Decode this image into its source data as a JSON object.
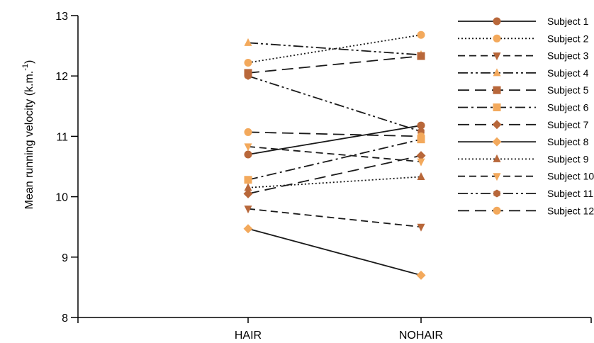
{
  "chart_data": {
    "type": "line",
    "ylabel": "Mean running velocity (k.m.",
    "ylabel_superscript": "-1",
    "ylabel_suffix": ")",
    "categories": [
      "HAIR",
      "NOHAIR"
    ],
    "ylim": [
      8,
      13
    ],
    "yticks": [
      8,
      9,
      10,
      11,
      12,
      13
    ],
    "legend_position": "top-right",
    "grid": false,
    "series": [
      {
        "name": "Subject 1",
        "values": [
          10.7,
          11.18
        ],
        "dash": "solid",
        "marker": "circle",
        "color": "#B8673A"
      },
      {
        "name": "Subject 2",
        "values": [
          12.22,
          12.68
        ],
        "dash": "dot",
        "marker": "circle",
        "color": "#F3A95C"
      },
      {
        "name": "Subject 3",
        "values": [
          9.8,
          9.5
        ],
        "dash": "dash",
        "marker": "tri-down",
        "color": "#B8673A"
      },
      {
        "name": "Subject 4",
        "values": [
          12.55,
          12.35
        ],
        "dash": "dashdotdot",
        "marker": "tri-up",
        "color": "#F3A95C"
      },
      {
        "name": "Subject 5",
        "values": [
          12.05,
          12.33
        ],
        "dash": "longdash",
        "marker": "square",
        "color": "#B8673A"
      },
      {
        "name": "Subject 6",
        "values": [
          10.28,
          10.95
        ],
        "dash": "dashdot",
        "marker": "square",
        "color": "#F3A95C"
      },
      {
        "name": "Subject 7",
        "values": [
          10.05,
          10.68
        ],
        "dash": "longdash",
        "marker": "diamond",
        "color": "#B8673A"
      },
      {
        "name": "Subject 8",
        "values": [
          9.47,
          8.7
        ],
        "dash": "solid",
        "marker": "diamond",
        "color": "#F3A95C"
      },
      {
        "name": "Subject 9",
        "values": [
          10.15,
          10.33
        ],
        "dash": "dot",
        "marker": "tri-up",
        "color": "#B8673A"
      },
      {
        "name": "Subject 10",
        "values": [
          10.83,
          10.58
        ],
        "dash": "dash",
        "marker": "tri-down",
        "color": "#F3A95C"
      },
      {
        "name": "Subject 11",
        "values": [
          12.0,
          11.08
        ],
        "dash": "dashdotdot",
        "marker": "hexagon",
        "color": "#B8673A"
      },
      {
        "name": "Subject 12",
        "values": [
          11.07,
          11.0
        ],
        "dash": "longdash",
        "marker": "circle",
        "color": "#F3A95C"
      }
    ]
  }
}
